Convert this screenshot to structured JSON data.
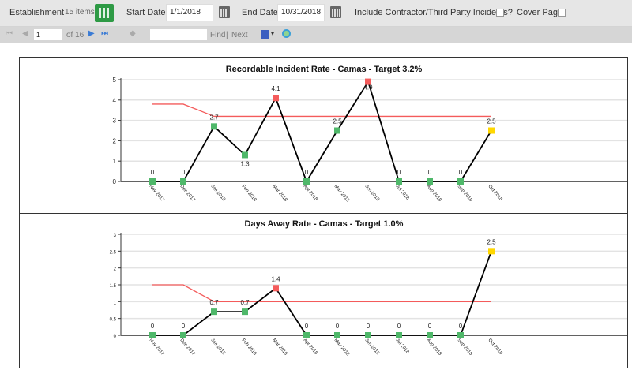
{
  "toolbar": {
    "establishment_label": "Establishment",
    "establishment_count": "15 items",
    "start_date_label": "Start Date",
    "start_date": "1/1/2018",
    "end_date_label": "End Date",
    "end_date": "10/31/2018",
    "contractor_label": "Include Contractor/Third Party Incidents?",
    "cover_page_label": "Cover Page"
  },
  "pager": {
    "page": "1",
    "of_label": "of 16",
    "find_label": "Find",
    "separator": "|",
    "next_label": "Next",
    "search_value": ""
  },
  "colors": {
    "green": "#4fb86a",
    "red": "#f45b5b",
    "yellow": "#ffd700",
    "target": "#f45b5b",
    "line": "#000000"
  },
  "chart_data": [
    {
      "type": "line",
      "title": "Recordable Incident Rate - Camas - Target 3.2%",
      "ylim": [
        0,
        5
      ],
      "yticks": [
        "0",
        "1",
        "2",
        "3",
        "4",
        "5"
      ],
      "grid": true,
      "categories": [
        "Nov 2017",
        "Dec 2017",
        "Jan 2018",
        "Feb 2018",
        "Mar 2018",
        "Apr 2018",
        "May 2018",
        "Jun 2018",
        "Jul 2018",
        "Aug 2018",
        "Sep 2018",
        "Oct 2018"
      ],
      "values": [
        0,
        0,
        2.7,
        1.3,
        4.1,
        0,
        2.5,
        4.9,
        0,
        0,
        0,
        2.5
      ],
      "labels": [
        "0",
        "0",
        "2.7",
        "1.3",
        "4.1",
        "0",
        "2.5",
        "4.9",
        "0",
        "0",
        "0",
        "2.5"
      ],
      "point_colors": [
        "green",
        "green",
        "green",
        "green",
        "red",
        "green",
        "green",
        "red",
        "green",
        "green",
        "green",
        "yellow"
      ],
      "target": [
        3.8,
        3.8,
        3.2,
        3.2,
        3.2,
        3.2,
        3.2,
        3.2,
        3.2,
        3.2,
        3.2,
        3.2
      ]
    },
    {
      "type": "line",
      "title": "Days Away Rate - Camas - Target 1.0%",
      "ylim": [
        0,
        3
      ],
      "yticks": [
        "0",
        "0.5",
        "1",
        "1.5",
        "2",
        "2.5",
        "3"
      ],
      "grid": true,
      "categories": [
        "Nov 2017",
        "Dec 2017",
        "Jan 2018",
        "Feb 2018",
        "Mar 2018",
        "Apr 2018",
        "May 2018",
        "Jun 2018",
        "Jul 2018",
        "Aug 2018",
        "Sep 2018",
        "Oct 2018"
      ],
      "values": [
        0,
        0,
        0.7,
        0.7,
        1.4,
        0,
        0,
        0,
        0,
        0,
        0,
        2.5
      ],
      "labels": [
        "0",
        "0",
        "0.7",
        "0.7",
        "1.4",
        "0",
        "0",
        "0",
        "0",
        "0",
        "0",
        "2.5"
      ],
      "point_colors": [
        "green",
        "green",
        "green",
        "green",
        "red",
        "green",
        "green",
        "green",
        "green",
        "green",
        "green",
        "yellow"
      ],
      "target": [
        1.5,
        1.5,
        1.0,
        1.0,
        1.0,
        1.0,
        1.0,
        1.0,
        1.0,
        1.0,
        1.0,
        1.0
      ]
    }
  ]
}
